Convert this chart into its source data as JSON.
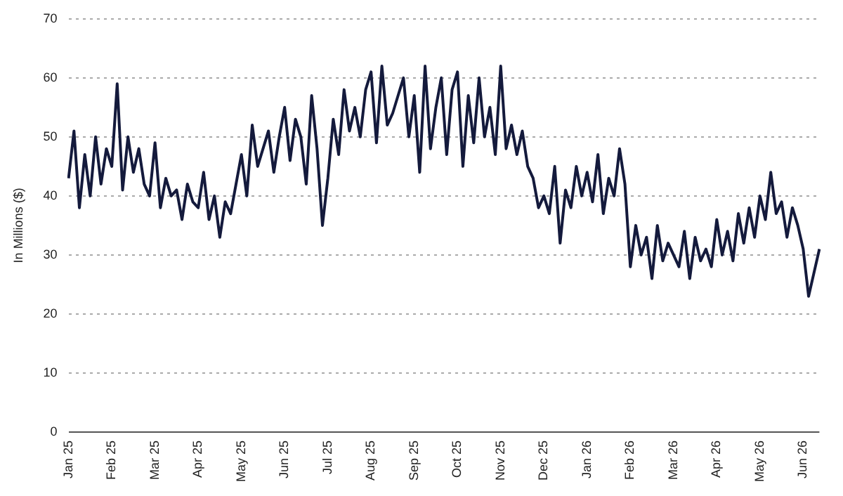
{
  "chart_data": {
    "type": "line",
    "ylabel": "In Millions ($)",
    "categories": [
      "Jan 25",
      null,
      null,
      null,
      null,
      null,
      null,
      null,
      "Feb 25",
      null,
      null,
      null,
      null,
      null,
      null,
      null,
      "Mar 25",
      null,
      null,
      null,
      null,
      null,
      null,
      null,
      "Apr 25",
      null,
      null,
      null,
      null,
      null,
      null,
      null,
      "May 25",
      null,
      null,
      null,
      null,
      null,
      null,
      null,
      "Jun 25",
      null,
      null,
      null,
      null,
      null,
      null,
      null,
      "Jul 25",
      null,
      null,
      null,
      null,
      null,
      null,
      null,
      "Aug 25",
      null,
      null,
      null,
      null,
      null,
      null,
      null,
      "Sep 25",
      null,
      null,
      null,
      null,
      null,
      null,
      null,
      "Oct 25",
      null,
      null,
      null,
      null,
      null,
      null,
      null,
      "Nov 25",
      null,
      null,
      null,
      null,
      null,
      null,
      null,
      "Dec 25",
      null,
      null,
      null,
      null,
      null,
      null,
      null,
      "Jan 26",
      null,
      null,
      null,
      null,
      null,
      null,
      null,
      "Feb 26",
      null,
      null,
      null,
      null,
      null,
      null,
      null,
      "Mar 26",
      null,
      null,
      null,
      null,
      null,
      null,
      null,
      "Apr 26",
      null,
      null,
      null,
      null,
      null,
      null,
      null,
      "May 26",
      null,
      null,
      null,
      null,
      null,
      null,
      null,
      "Jun 26",
      null,
      null,
      null
    ],
    "series": [
      {
        "color": "#141a3c",
        "values": [
          43,
          51,
          38,
          47,
          40,
          50,
          42,
          48,
          45,
          59,
          41,
          50,
          44,
          48,
          42,
          40,
          49,
          38,
          43,
          40,
          41,
          36,
          42,
          39,
          38,
          44,
          36,
          40,
          33,
          39,
          37,
          42,
          47,
          40,
          52,
          45,
          48,
          51,
          44,
          50,
          55,
          46,
          53,
          50,
          42,
          57,
          48,
          35,
          43,
          53,
          47,
          58,
          51,
          55,
          50,
          58,
          61,
          49,
          62,
          52,
          54,
          57,
          60,
          50,
          57,
          44,
          62,
          48,
          55,
          60,
          47,
          58,
          61,
          45,
          57,
          49,
          60,
          50,
          55,
          47,
          62,
          48,
          52,
          47,
          51,
          45,
          43,
          38,
          40,
          37,
          45,
          32,
          41,
          38,
          45,
          40,
          44,
          39,
          47,
          37,
          43,
          40,
          48,
          42,
          28,
          35,
          30,
          33,
          26,
          35,
          29,
          32,
          30,
          28,
          34,
          26,
          33,
          29,
          31,
          28,
          36,
          30,
          34,
          29,
          37,
          32,
          38,
          33,
          40,
          36,
          44,
          37,
          39,
          33,
          38,
          35,
          31,
          23,
          27,
          31
        ]
      }
    ],
    "ylim": [
      0,
      70
    ],
    "yticks": [
      0,
      10,
      20,
      30,
      40,
      50,
      60,
      70
    ],
    "grid": "y",
    "legend": false,
    "marker": "none",
    "line_style": "solid"
  }
}
